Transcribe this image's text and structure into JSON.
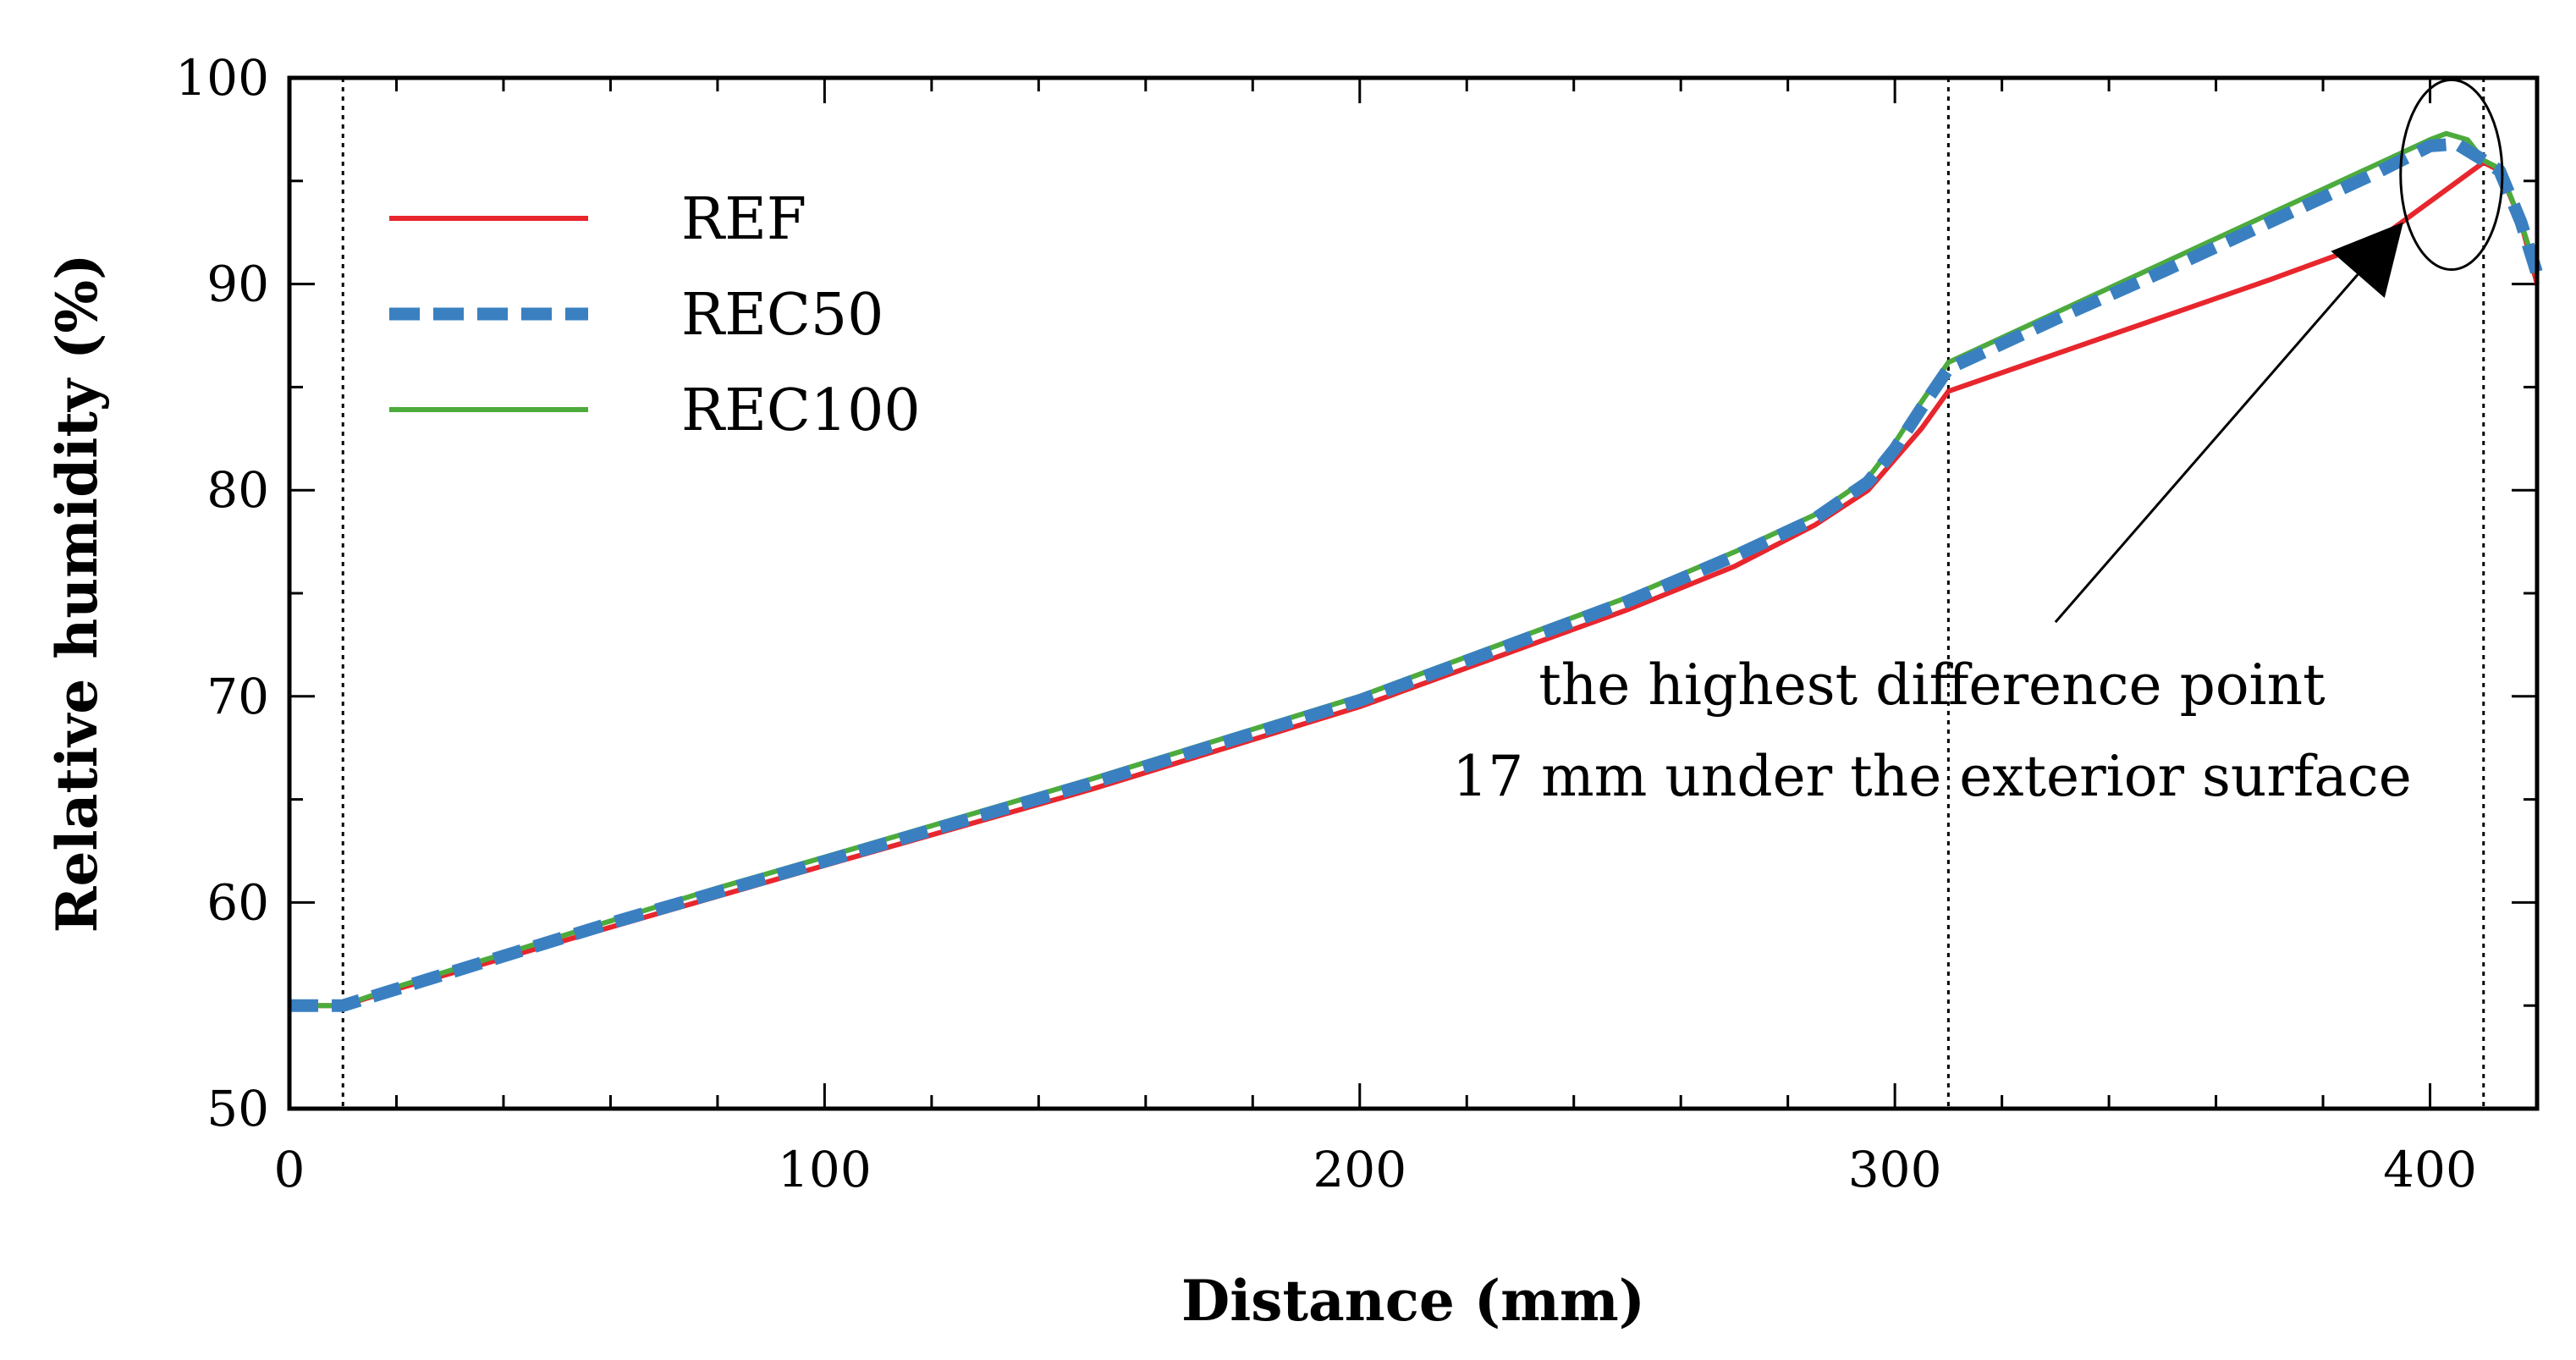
{
  "chart_data": {
    "type": "line",
    "title": "",
    "xlabel": "Distance (mm)",
    "ylabel": "Relative humidity (%)",
    "xlim": [
      0,
      420
    ],
    "ylim": [
      50,
      100
    ],
    "xticks": [
      0,
      100,
      200,
      300,
      400
    ],
    "xtick_labels": [
      "0",
      "100",
      "200",
      "300",
      "400"
    ],
    "yticks": [
      50,
      60,
      70,
      80,
      90,
      100
    ],
    "ytick_labels": [
      "50",
      "60",
      "70",
      "80",
      "90",
      "100"
    ],
    "x_minor_step": 20,
    "y_minor_step": 5,
    "grid": false,
    "legend_position": "top-left",
    "reference_lines_x": [
      10,
      310,
      410
    ],
    "series": [
      {
        "name": "REF",
        "color": "#e8262d",
        "style": "solid",
        "x": [
          0,
          10,
          20,
          40,
          60,
          80,
          100,
          150,
          200,
          250,
          270,
          285,
          295,
          300,
          305,
          310,
          330,
          350,
          370,
          390,
          410,
          413,
          417,
          420
        ],
        "y": [
          55.0,
          55.0,
          55.8,
          57.3,
          58.8,
          60.3,
          61.8,
          65.5,
          69.5,
          74.2,
          76.3,
          78.3,
          80.0,
          81.5,
          83.0,
          84.8,
          86.6,
          88.4,
          90.2,
          92.1,
          95.9,
          95.5,
          93.0,
          90.0
        ]
      },
      {
        "name": "REC50",
        "color": "#3a80c1",
        "style": "dashed",
        "x": [
          0,
          10,
          20,
          40,
          60,
          80,
          100,
          150,
          200,
          250,
          270,
          285,
          295,
          300,
          305,
          310,
          330,
          350,
          370,
          390,
          400,
          405,
          410,
          413,
          417,
          420
        ],
        "y": [
          55.0,
          55.0,
          55.8,
          57.4,
          59.0,
          60.5,
          62.0,
          65.8,
          69.8,
          74.6,
          76.8,
          78.6,
          80.4,
          82.0,
          84.0,
          85.9,
          88.3,
          90.6,
          93.0,
          95.4,
          96.7,
          96.8,
          96.0,
          95.5,
          93.0,
          90.5
        ]
      },
      {
        "name": "REC100",
        "color": "#4cab3c",
        "style": "solid",
        "x": [
          0,
          10,
          20,
          40,
          60,
          80,
          100,
          150,
          200,
          250,
          270,
          285,
          295,
          300,
          305,
          310,
          330,
          350,
          370,
          390,
          400,
          403,
          407,
          410,
          413,
          417,
          420
        ],
        "y": [
          55.0,
          55.0,
          55.9,
          57.5,
          59.1,
          60.7,
          62.2,
          66.0,
          70.0,
          74.8,
          77.0,
          78.8,
          80.6,
          82.3,
          84.3,
          86.2,
          88.6,
          91.0,
          93.4,
          95.8,
          97.0,
          97.3,
          97.0,
          96.0,
          95.6,
          93.0,
          90.5
        ]
      }
    ],
    "annotations": [
      {
        "line1": "the highest difference point",
        "line2": "17 mm under the exterior surface",
        "arrow_from": [
          330,
          73.6
        ],
        "arrow_to": [
          395,
          93.0
        ],
        "circle_center": [
          404,
          95.3
        ],
        "circle_radius_x": 9.5,
        "circle_radius_y": 4.6
      }
    ]
  }
}
